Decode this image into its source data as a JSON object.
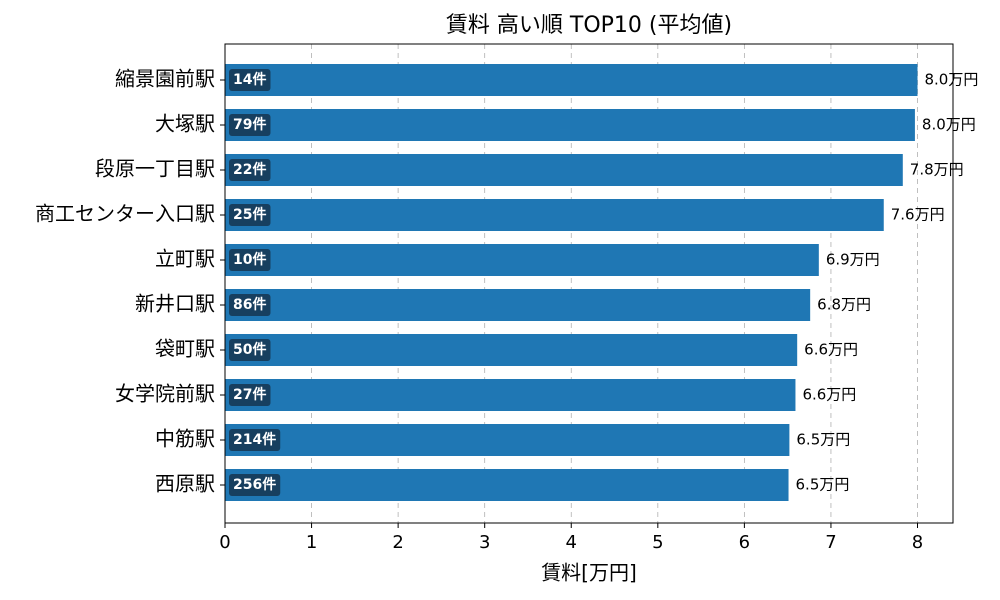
{
  "chart_data": {
    "type": "bar",
    "orientation": "horizontal",
    "title": "賃料 高い順 TOP10 (平均値)",
    "x_label": "賃料[万円]",
    "categories": [
      "縮景園前駅",
      "大塚駅",
      "段原一丁目駅",
      "商工センター入口駅",
      "立町駅",
      "新井口駅",
      "袋町駅",
      "女学院前駅",
      "中筋駅",
      "西原駅"
    ],
    "values": [
      8.0,
      7.97,
      7.83,
      7.61,
      6.86,
      6.76,
      6.61,
      6.59,
      6.52,
      6.51
    ],
    "value_labels": [
      "8.0万円",
      "8.0万円",
      "7.8万円",
      "7.6万円",
      "6.9万円",
      "6.8万円",
      "6.6万円",
      "6.6万円",
      "6.5万円",
      "6.5万円"
    ],
    "count_labels": [
      "14件",
      "79件",
      "22件",
      "25件",
      "10件",
      "86件",
      "50件",
      "27件",
      "214件",
      "256件"
    ],
    "color": "#1f77b4",
    "xlim": [
      0,
      8.41
    ],
    "xticks": [
      0,
      1,
      2,
      3,
      4,
      5,
      6,
      7,
      8
    ],
    "grid": true
  }
}
